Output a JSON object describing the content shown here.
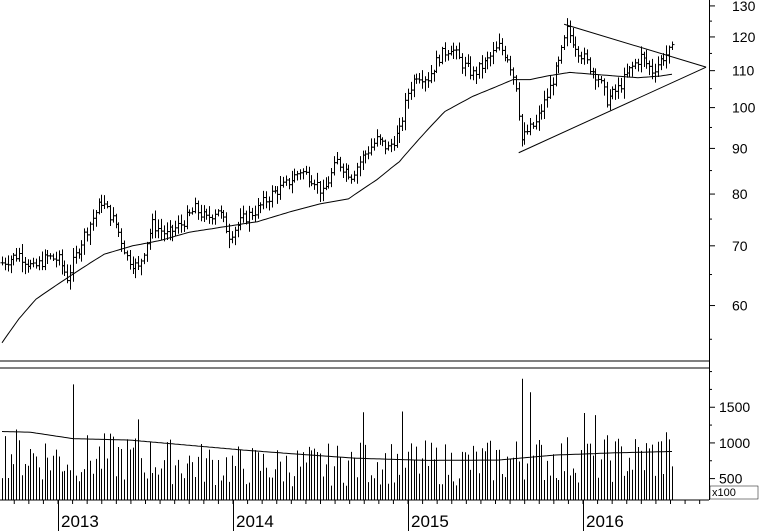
{
  "chart_data": [
    {
      "type": "ohlc",
      "panel": "price",
      "scale": "log",
      "ylim": [
        52,
        132
      ],
      "y_ticks": [
        60,
        70,
        80,
        90,
        100,
        110,
        120,
        130
      ],
      "y_tick_labels": [
        "60",
        "70",
        "80",
        "90",
        "100",
        "110",
        "120",
        "130"
      ],
      "x_tick_labels": [
        "2013",
        "2014",
        "2015",
        "2016"
      ],
      "anchors": [
        {
          "t": 0,
          "close": 67
        },
        {
          "t": 6,
          "close": 68.5
        },
        {
          "t": 11,
          "close": 66
        },
        {
          "t": 16,
          "close": 68
        },
        {
          "t": 20,
          "close": 67.5
        },
        {
          "t": 23,
          "close": 64.5
        },
        {
          "t": 29,
          "close": 72
        },
        {
          "t": 35,
          "close": 78.5
        },
        {
          "t": 40,
          "close": 74
        },
        {
          "t": 44,
          "close": 68
        },
        {
          "t": 48,
          "close": 66
        },
        {
          "t": 53,
          "close": 74
        },
        {
          "t": 58,
          "close": 72
        },
        {
          "t": 63,
          "close": 74
        },
        {
          "t": 68,
          "close": 77
        },
        {
          "t": 72,
          "close": 75
        },
        {
          "t": 76,
          "close": 77
        },
        {
          "t": 80,
          "close": 72
        },
        {
          "t": 85,
          "close": 75
        },
        {
          "t": 90,
          "close": 77
        },
        {
          "t": 95,
          "close": 80
        },
        {
          "t": 100,
          "close": 82
        },
        {
          "t": 105,
          "close": 85
        },
        {
          "t": 110,
          "close": 83
        },
        {
          "t": 113,
          "close": 80
        },
        {
          "t": 118,
          "close": 87
        },
        {
          "t": 123,
          "close": 84
        },
        {
          "t": 127,
          "close": 88
        },
        {
          "t": 132,
          "close": 92
        },
        {
          "t": 136,
          "close": 90
        },
        {
          "t": 140,
          "close": 94
        },
        {
          "t": 143,
          "close": 104
        },
        {
          "t": 146,
          "close": 109
        },
        {
          "t": 150,
          "close": 108
        },
        {
          "t": 154,
          "close": 114
        },
        {
          "t": 158,
          "close": 117
        },
        {
          "t": 162,
          "close": 112
        },
        {
          "t": 166,
          "close": 109
        },
        {
          "t": 170,
          "close": 112
        },
        {
          "t": 175,
          "close": 117
        },
        {
          "t": 178,
          "close": 114
        },
        {
          "t": 181,
          "close": 106
        },
        {
          "t": 183,
          "close": 92
        },
        {
          "t": 185,
          "close": 94
        },
        {
          "t": 188,
          "close": 96
        },
        {
          "t": 192,
          "close": 103
        },
        {
          "t": 196,
          "close": 112
        },
        {
          "t": 199,
          "close": 122
        },
        {
          "t": 203,
          "close": 116
        },
        {
          "t": 207,
          "close": 111
        },
        {
          "t": 210,
          "close": 108
        },
        {
          "t": 213,
          "close": 102
        },
        {
          "t": 217,
          "close": 105
        },
        {
          "t": 221,
          "close": 110
        },
        {
          "t": 225,
          "close": 114
        },
        {
          "t": 229,
          "close": 110
        },
        {
          "t": 233,
          "close": 114
        },
        {
          "t": 236,
          "close": 116
        }
      ],
      "moving_average": [
        {
          "t": 0,
          "value": 54.5
        },
        {
          "t": 6,
          "value": 58
        },
        {
          "t": 12,
          "value": 61
        },
        {
          "t": 20,
          "value": 63.5
        },
        {
          "t": 28,
          "value": 66
        },
        {
          "t": 36,
          "value": 68.5
        },
        {
          "t": 46,
          "value": 70
        },
        {
          "t": 56,
          "value": 71
        },
        {
          "t": 66,
          "value": 72.5
        },
        {
          "t": 78,
          "value": 73.5
        },
        {
          "t": 90,
          "value": 74.5
        },
        {
          "t": 102,
          "value": 76.5
        },
        {
          "t": 112,
          "value": 78
        },
        {
          "t": 122,
          "value": 79
        },
        {
          "t": 132,
          "value": 83
        },
        {
          "t": 140,
          "value": 87
        },
        {
          "t": 148,
          "value": 93
        },
        {
          "t": 156,
          "value": 99
        },
        {
          "t": 166,
          "value": 103
        },
        {
          "t": 174,
          "value": 105.5
        },
        {
          "t": 180,
          "value": 107.5
        },
        {
          "t": 186,
          "value": 107.5
        },
        {
          "t": 192,
          "value": 108.5
        },
        {
          "t": 200,
          "value": 109.5
        },
        {
          "t": 208,
          "value": 109
        },
        {
          "t": 216,
          "value": 108.5
        },
        {
          "t": 224,
          "value": 108
        },
        {
          "t": 232,
          "value": 108.5
        },
        {
          "t": 236,
          "value": 109
        }
      ],
      "trendlines": [
        {
          "name": "upper",
          "from": {
            "t": 198,
            "value": 124
          },
          "to": {
            "t": 248,
            "value": 111
          }
        },
        {
          "name": "lower",
          "from": {
            "t": 182,
            "value": 89
          },
          "to": {
            "t": 248,
            "value": 111
          }
        }
      ]
    },
    {
      "type": "bar",
      "panel": "volume",
      "unit": "x100",
      "ylim": [
        200,
        2050
      ],
      "y_ticks": [
        500,
        1000,
        1500
      ],
      "y_tick_labels": [
        "500",
        "1000",
        "1500"
      ],
      "anchors": [
        {
          "t": 0,
          "value": 900
        },
        {
          "t": 20,
          "value": 800
        },
        {
          "t": 40,
          "value": 820
        },
        {
          "t": 60,
          "value": 760
        },
        {
          "t": 80,
          "value": 700
        },
        {
          "t": 100,
          "value": 690
        },
        {
          "t": 120,
          "value": 720
        },
        {
          "t": 140,
          "value": 760
        },
        {
          "t": 160,
          "value": 720
        },
        {
          "t": 180,
          "value": 780
        },
        {
          "t": 200,
          "value": 800
        },
        {
          "t": 220,
          "value": 800
        },
        {
          "t": 236,
          "value": 860
        }
      ],
      "spikes": [
        {
          "t": 25,
          "value": 1820
        },
        {
          "t": 48,
          "value": 1330
        },
        {
          "t": 127,
          "value": 1430
        },
        {
          "t": 141,
          "value": 1440
        },
        {
          "t": 183,
          "value": 1900
        },
        {
          "t": 186,
          "value": 1710
        },
        {
          "t": 205,
          "value": 1420
        },
        {
          "t": 209,
          "value": 1390
        },
        {
          "t": 234,
          "value": 1150
        }
      ],
      "moving_average": [
        {
          "t": 0,
          "value": 1160
        },
        {
          "t": 10,
          "value": 1150
        },
        {
          "t": 25,
          "value": 1060
        },
        {
          "t": 45,
          "value": 1040
        },
        {
          "t": 65,
          "value": 970
        },
        {
          "t": 85,
          "value": 900
        },
        {
          "t": 105,
          "value": 840
        },
        {
          "t": 125,
          "value": 785
        },
        {
          "t": 150,
          "value": 755
        },
        {
          "t": 175,
          "value": 760
        },
        {
          "t": 195,
          "value": 830
        },
        {
          "t": 215,
          "value": 860
        },
        {
          "t": 236,
          "value": 880
        }
      ]
    }
  ]
}
